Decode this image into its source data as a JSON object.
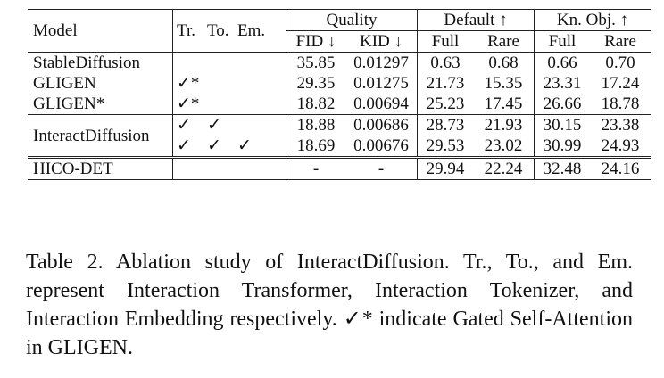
{
  "table": {
    "headers": {
      "model": "Model",
      "flags": [
        "Tr.",
        "To.",
        "Em."
      ],
      "groups": [
        "Quality",
        "Default ↑",
        "Kn. Obj. ↑"
      ],
      "subcolumns": [
        "FID ↓",
        "KID ↓",
        "Full",
        "Rare",
        "Full",
        "Rare"
      ]
    },
    "rows": [
      {
        "model": "StableDiffusion",
        "flags": [
          "",
          "",
          ""
        ],
        "values": [
          "35.85",
          "0.01297",
          "0.63",
          "0.68",
          "0.66",
          "0.70"
        ]
      },
      {
        "model": "GLIGEN",
        "flags": [
          "✓*",
          "",
          ""
        ],
        "values": [
          "29.35",
          "0.01275",
          "21.73",
          "15.35",
          "23.31",
          "17.24"
        ]
      },
      {
        "model": "GLIGEN*",
        "flags": [
          "✓*",
          "",
          ""
        ],
        "values": [
          "18.82",
          "0.00694",
          "25.23",
          "17.45",
          "26.66",
          "18.78"
        ]
      },
      {
        "model": "InteractDiffusion",
        "flags": [
          "✓",
          "✓",
          ""
        ],
        "values": [
          "18.88",
          "0.00686",
          "28.73",
          "21.93",
          "30.15",
          "23.38"
        ]
      },
      {
        "model": "",
        "flags": [
          "✓",
          "✓",
          "✓"
        ],
        "values": [
          "18.69",
          "0.00676",
          "29.53",
          "23.02",
          "30.99",
          "24.93"
        ]
      },
      {
        "model": "HICO-DET",
        "flags": [
          "",
          "",
          ""
        ],
        "values": [
          "-",
          "-",
          "29.94",
          "22.24",
          "32.48",
          "24.16"
        ]
      }
    ]
  },
  "caption": "Table 2. Ablation study of InteractDiffusion. Tr., To., and Em. represent Interaction Transformer, Interaction Tokenizer, and Interaction Embedding respectively. ✓* indicate Gated Self-Attention in GLIGEN."
}
